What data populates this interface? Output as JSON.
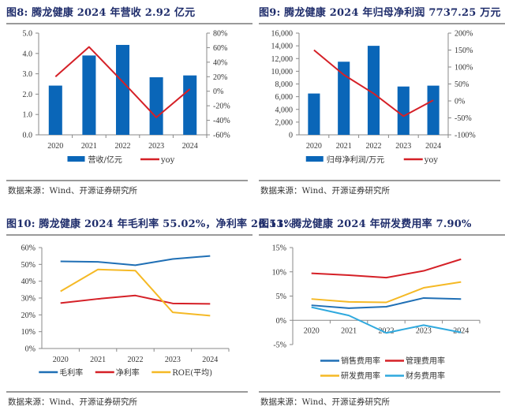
{
  "source_text": "数据来源：Wind、开源证券研究所",
  "chart_data": [
    {
      "id": "fig8",
      "type": "bar+line",
      "title": "图8:  腾龙健康 2024 年营收 2.92 亿元",
      "categories": [
        "2020",
        "2021",
        "2022",
        "2023",
        "2024"
      ],
      "series": [
        {
          "name": "营收/亿元",
          "kind": "bar",
          "axis": "left",
          "color": "#0a66b8",
          "values": [
            2.42,
            3.9,
            4.42,
            2.83,
            2.92
          ]
        },
        {
          "name": "yoy",
          "kind": "line",
          "axis": "right",
          "color": "#d52027",
          "values": [
            20,
            61,
            13,
            -36,
            3
          ]
        }
      ],
      "left_axis": {
        "min": 0,
        "max": 5,
        "step": 1,
        "ticks": [
          "0.0",
          "1.0",
          "2.0",
          "3.0",
          "4.0",
          "5.0"
        ]
      },
      "right_axis": {
        "min": -60,
        "max": 80,
        "step": 20,
        "ticks": [
          "-60%",
          "-40%",
          "-20%",
          "0%",
          "20%",
          "40%",
          "60%",
          "80%"
        ]
      },
      "legend": "bottom",
      "grid": false
    },
    {
      "id": "fig9",
      "type": "bar+line",
      "title": "图9:  腾龙健康 2024 年归母净利润 7737.25 万元",
      "categories": [
        "2020",
        "2021",
        "2022",
        "2023",
        "2024"
      ],
      "series": [
        {
          "name": "归母净利润/万元",
          "kind": "bar",
          "axis": "left",
          "color": "#0a66b8",
          "values": [
            6500,
            11500,
            14000,
            7600,
            7737.25
          ]
        },
        {
          "name": "yoy",
          "kind": "line",
          "axis": "right",
          "color": "#d52027",
          "values": [
            150,
            77,
            22,
            -45,
            2
          ]
        }
      ],
      "left_axis": {
        "min": 0,
        "max": 16000,
        "step": 2000,
        "ticks": [
          "0",
          "2,000",
          "4,000",
          "6,000",
          "8,000",
          "10,000",
          "12,000",
          "14,000",
          "16,000"
        ]
      },
      "right_axis": {
        "min": -100,
        "max": 200,
        "step": 50,
        "ticks": [
          "-100%",
          "-50%",
          "0%",
          "50%",
          "100%",
          "150%",
          "200%"
        ]
      },
      "legend": "bottom",
      "grid": false
    },
    {
      "id": "fig10",
      "type": "line",
      "title": "图10:  腾龙健康 2024 年毛利率 55.02%，净利率 26.53%",
      "categories": [
        "2020",
        "2021",
        "2022",
        "2023",
        "2024"
      ],
      "series": [
        {
          "name": "毛利率",
          "color": "#1f6fb5",
          "values": [
            51.8,
            51.5,
            49.5,
            53.2,
            55.02
          ]
        },
        {
          "name": "净利率",
          "color": "#d52027",
          "values": [
            27.0,
            29.5,
            31.5,
            26.8,
            26.53
          ]
        },
        {
          "name": "ROE(平均)",
          "color": "#f5b925",
          "values": [
            34.0,
            47.0,
            46.3,
            21.5,
            19.5
          ]
        }
      ],
      "left_axis": {
        "min": 0,
        "max": 60,
        "step": 10,
        "ticks": [
          "0%",
          "10%",
          "20%",
          "30%",
          "40%",
          "50%",
          "60%"
        ]
      },
      "legend": "bottom",
      "grid": false
    },
    {
      "id": "fig11",
      "type": "line",
      "title": "图11:  腾龙健康 2024 年研发费用率 7.90%",
      "categories": [
        "2020",
        "2021",
        "2022",
        "2023",
        "2024"
      ],
      "series": [
        {
          "name": "销售费用率",
          "color": "#1f6fb5",
          "values": [
            3.1,
            2.5,
            2.8,
            4.6,
            4.4
          ]
        },
        {
          "name": "管理费用率",
          "color": "#d52027",
          "values": [
            9.7,
            9.3,
            8.8,
            10.2,
            12.6
          ]
        },
        {
          "name": "研发费用率",
          "color": "#f5b925",
          "values": [
            4.4,
            3.8,
            3.7,
            6.7,
            7.9
          ]
        },
        {
          "name": "财务费用率",
          "color": "#2fa9de",
          "values": [
            2.7,
            1.0,
            -2.6,
            -1.0,
            -2.5
          ]
        }
      ],
      "left_axis": {
        "min": -5,
        "max": 15,
        "step": 5,
        "ticks": [
          "-5%",
          "0%",
          "5%",
          "10%",
          "15%"
        ]
      },
      "legend": "bottom",
      "grid": false
    }
  ]
}
